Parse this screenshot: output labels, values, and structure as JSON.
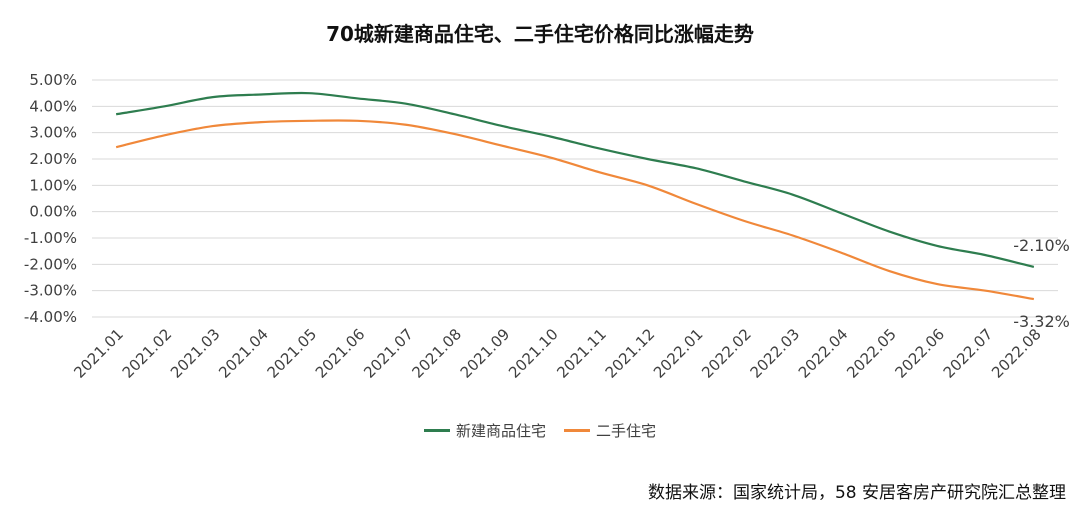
{
  "chart_data": {
    "type": "line",
    "title": "70城新建商品住宅、二手住宅价格同比涨幅走势",
    "categories": [
      "2021.01",
      "2021.02",
      "2021.03",
      "2021.04",
      "2021.05",
      "2021.06",
      "2021.07",
      "2021.08",
      "2021.09",
      "2021.10",
      "2021.11",
      "2021.12",
      "2022.01",
      "2022.02",
      "2022.03",
      "2022.04",
      "2022.05",
      "2022.06",
      "2022.07",
      "2022.08"
    ],
    "y_ticks": [
      "5.00%",
      "4.00%",
      "3.00%",
      "2.00%",
      "1.00%",
      "0.00%",
      "-1.00%",
      "-2.00%",
      "-3.00%",
      "-4.00%"
    ],
    "ylim": [
      -4,
      5
    ],
    "grid": true,
    "legend_position": "bottom",
    "series": [
      {
        "name": "新建商品住宅",
        "color": "#2E7D4F",
        "values": [
          3.7,
          4.0,
          4.35,
          4.45,
          4.5,
          4.3,
          4.1,
          3.7,
          3.25,
          2.85,
          2.4,
          2.0,
          1.65,
          1.15,
          0.65,
          -0.05,
          -0.75,
          -1.3,
          -1.65,
          -2.1
        ],
        "end_label": "-2.10%"
      },
      {
        "name": "二手住宅",
        "color": "#F0883A",
        "values": [
          2.45,
          2.9,
          3.25,
          3.4,
          3.45,
          3.45,
          3.3,
          2.95,
          2.5,
          2.05,
          1.5,
          1.0,
          0.3,
          -0.35,
          -0.9,
          -1.55,
          -2.25,
          -2.75,
          -3.0,
          -3.32
        ],
        "end_label": "-3.32%"
      }
    ]
  },
  "source": "数据来源：国家统计局，58 安居客房产研究院汇总整理"
}
